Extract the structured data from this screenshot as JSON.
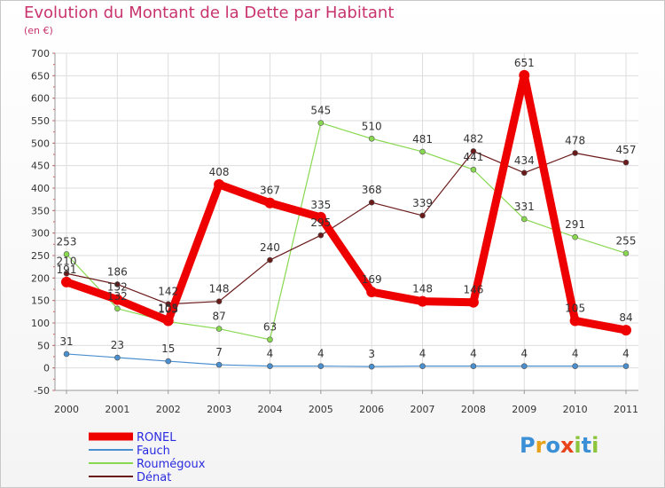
{
  "header": {
    "title": "Evolution du Montant de la Dette par Habitant",
    "subtitle": "(en €)"
  },
  "logo": {
    "text": "Proxiti",
    "letters": [
      {
        "ch": "P",
        "color": "#3a8fd6"
      },
      {
        "ch": "r",
        "color": "#e8a21a"
      },
      {
        "ch": "o",
        "color": "#3a8fd6"
      },
      {
        "ch": "x",
        "color": "#e8431a"
      },
      {
        "ch": "i",
        "color": "#8cc43c"
      },
      {
        "ch": "t",
        "color": "#3a8fd6"
      },
      {
        "ch": "i",
        "color": "#8cc43c"
      }
    ]
  },
  "chart_data": {
    "type": "line",
    "title": "Evolution du Montant de la Dette par Habitant",
    "subtitle": "(en €)",
    "x": [
      "2000",
      "2001",
      "2002",
      "2003",
      "2004",
      "2005",
      "2006",
      "2007",
      "2008",
      "2009",
      "2010",
      "2011"
    ],
    "yticks": [
      -50,
      0,
      50,
      100,
      150,
      200,
      250,
      300,
      350,
      400,
      450,
      500,
      550,
      600,
      650,
      700
    ],
    "ylim": [
      -50,
      700
    ],
    "grid": true,
    "legend_position": "bottom-left",
    "series": [
      {
        "name": "RONEL",
        "color": "#ee0000",
        "width": 9,
        "marker": 6,
        "values": [
          191,
          152,
          105,
          408,
          367,
          335,
          169,
          148,
          146,
          651,
          105,
          84
        ],
        "labels": [
          "191",
          "152",
          "105",
          "408",
          "367",
          "335",
          "169",
          "148",
          "146",
          "651",
          "105",
          "84"
        ]
      },
      {
        "name": "Fauch",
        "color": "#4a8fcf",
        "width": 1.2,
        "marker": 3,
        "values": [
          31,
          23,
          15,
          7,
          4,
          4,
          3,
          4,
          4,
          4,
          4,
          4
        ],
        "labels": [
          "31",
          "23",
          "15",
          "7",
          "4",
          "4",
          "3",
          "4",
          "4",
          "4",
          "4",
          "4"
        ]
      },
      {
        "name": "Roumégoux",
        "color": "#88d850",
        "width": 1.2,
        "marker": 3,
        "values": [
          253,
          132,
          103,
          87,
          63,
          545,
          510,
          481,
          441,
          331,
          291,
          255
        ],
        "labels": [
          "253",
          "132",
          "103",
          "87",
          "63",
          "545",
          "510",
          "481",
          "441",
          "331",
          "291",
          "255"
        ]
      },
      {
        "name": "Dénat",
        "color": "#6b1a1a",
        "width": 1.2,
        "marker": 3,
        "values": [
          210,
          186,
          142,
          148,
          240,
          295,
          368,
          339,
          482,
          434,
          478,
          457
        ],
        "labels": [
          "210",
          "186",
          "142",
          "148",
          "240",
          "295",
          "368",
          "339",
          "482",
          "434",
          "478",
          "457"
        ]
      }
    ]
  }
}
